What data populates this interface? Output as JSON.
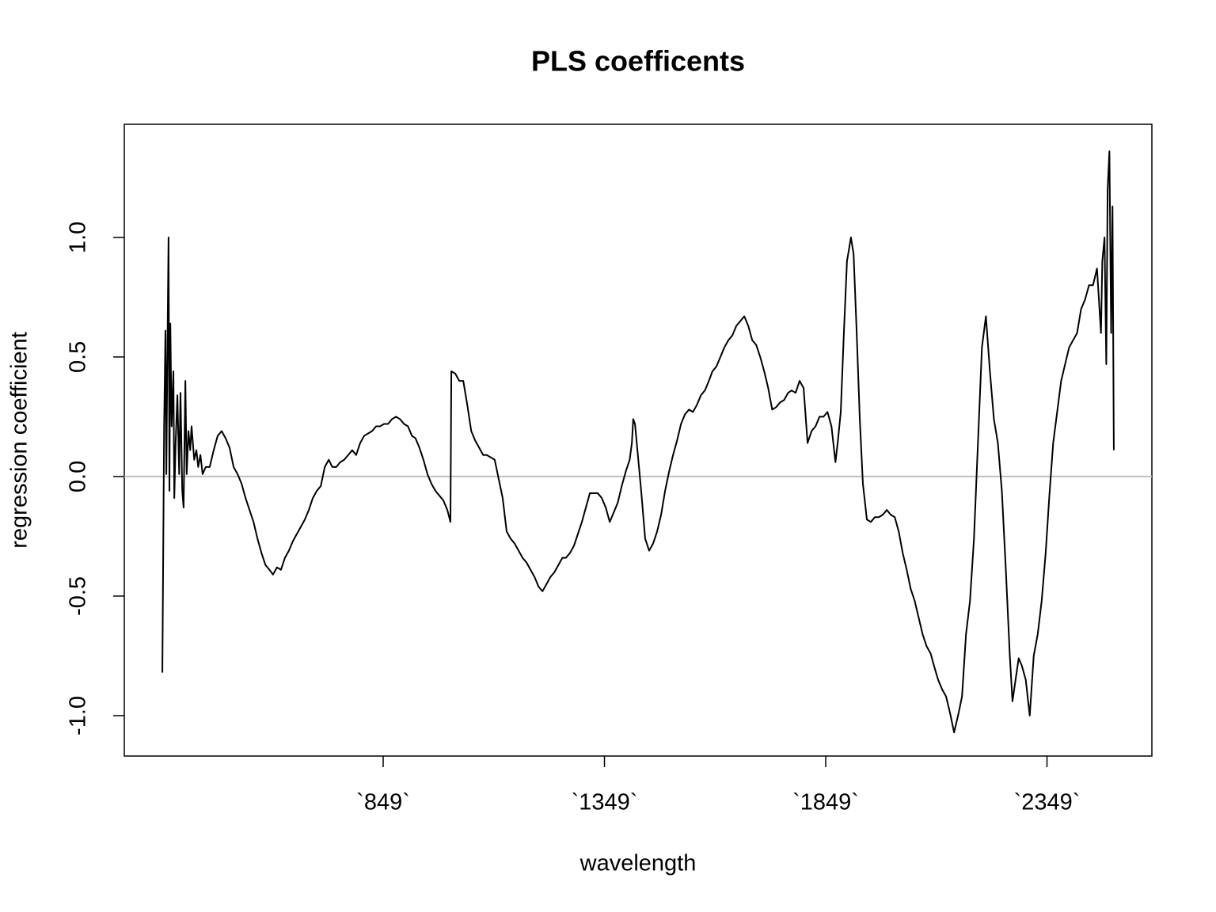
{
  "chart_data": {
    "type": "line",
    "title": "PLS coefficents",
    "x_label": "wavelength",
    "y_label": "regression coefficient",
    "x": [
      350,
      354,
      357,
      359,
      361,
      364,
      366,
      368,
      371,
      375,
      377,
      380,
      384,
      388,
      391,
      395,
      398,
      402,
      405,
      409,
      413,
      416,
      422,
      427,
      431,
      436,
      441,
      448,
      457,
      466,
      475,
      484,
      493,
      502,
      511,
      520,
      529,
      538,
      547,
      556,
      565,
      574,
      583,
      592,
      600,
      609,
      618,
      627,
      636,
      645,
      654,
      663,
      672,
      681,
      690,
      699,
      708,
      717,
      726,
      734,
      743,
      752,
      761,
      770,
      779,
      788,
      797,
      806,
      815,
      824,
      833,
      842,
      851,
      860,
      869,
      878,
      887,
      896,
      905,
      914,
      922,
      931,
      940,
      949,
      958,
      967,
      976,
      985,
      994,
      1001,
      1003,
      1012,
      1021,
      1030,
      1039,
      1048,
      1057,
      1066,
      1075,
      1083,
      1092,
      1101,
      1110,
      1119,
      1128,
      1137,
      1146,
      1155,
      1164,
      1173,
      1182,
      1191,
      1200,
      1209,
      1218,
      1227,
      1236,
      1245,
      1254,
      1262,
      1271,
      1280,
      1289,
      1298,
      1307,
      1316,
      1325,
      1334,
      1343,
      1352,
      1361,
      1370,
      1379,
      1388,
      1397,
      1406,
      1411,
      1414,
      1418,
      1423,
      1432,
      1441,
      1450,
      1459,
      1468,
      1477,
      1486,
      1495,
      1504,
      1513,
      1522,
      1531,
      1540,
      1549,
      1558,
      1567,
      1576,
      1585,
      1593,
      1602,
      1611,
      1620,
      1629,
      1638,
      1647,
      1656,
      1665,
      1674,
      1683,
      1692,
      1701,
      1710,
      1719,
      1728,
      1737,
      1746,
      1755,
      1764,
      1772,
      1781,
      1790,
      1799,
      1808,
      1817,
      1826,
      1835,
      1844,
      1853,
      1862,
      1871,
      1876,
      1883,
      1890,
      1897,
      1906,
      1912,
      1919,
      1926,
      1933,
      1942,
      1951,
      1960,
      1969,
      1978,
      1987,
      1996,
      2005,
      2014,
      2023,
      2032,
      2041,
      2050,
      2059,
      2068,
      2077,
      2086,
      2095,
      2103,
      2112,
      2121,
      2130,
      2139,
      2148,
      2157,
      2166,
      2175,
      2184,
      2193,
      2202,
      2211,
      2220,
      2229,
      2238,
      2247,
      2256,
      2265,
      2271,
      2278,
      2285,
      2292,
      2301,
      2310,
      2319,
      2328,
      2337,
      2346,
      2354,
      2363,
      2372,
      2381,
      2390,
      2399,
      2408,
      2417,
      2426,
      2435,
      2444,
      2453,
      2462,
      2471,
      2474,
      2479,
      2483,
      2486,
      2490,
      2494,
      2497,
      2500
    ],
    "values": [
      -0.82,
      0.21,
      0.61,
      0.01,
      0.44,
      1.0,
      -0.06,
      0.64,
      0.21,
      0.44,
      -0.09,
      0.14,
      0.34,
      0.01,
      0.35,
      -0.06,
      -0.13,
      0.4,
      0.01,
      0.19,
      0.11,
      0.21,
      0.07,
      0.11,
      0.04,
      0.09,
      0.01,
      0.04,
      0.04,
      0.11,
      0.17,
      0.19,
      0.16,
      0.12,
      0.04,
      0.01,
      -0.03,
      -0.09,
      -0.14,
      -0.19,
      -0.26,
      -0.32,
      -0.37,
      -0.39,
      -0.41,
      -0.38,
      -0.39,
      -0.34,
      -0.31,
      -0.27,
      -0.24,
      -0.21,
      -0.18,
      -0.14,
      -0.09,
      -0.06,
      -0.04,
      0.04,
      0.07,
      0.04,
      0.04,
      0.06,
      0.07,
      0.09,
      0.11,
      0.09,
      0.14,
      0.17,
      0.18,
      0.19,
      0.21,
      0.21,
      0.22,
      0.22,
      0.24,
      0.25,
      0.24,
      0.22,
      0.21,
      0.17,
      0.16,
      0.12,
      0.07,
      0.01,
      -0.03,
      -0.06,
      -0.08,
      -0.1,
      -0.14,
      -0.19,
      0.44,
      0.43,
      0.4,
      0.4,
      0.3,
      0.19,
      0.15,
      0.12,
      0.09,
      0.09,
      0.08,
      0.07,
      -0.01,
      -0.09,
      -0.23,
      -0.26,
      -0.28,
      -0.31,
      -0.34,
      -0.36,
      -0.39,
      -0.42,
      -0.46,
      -0.48,
      -0.45,
      -0.42,
      -0.4,
      -0.37,
      -0.34,
      -0.34,
      -0.32,
      -0.29,
      -0.24,
      -0.19,
      -0.13,
      -0.07,
      -0.07,
      -0.07,
      -0.09,
      -0.13,
      -0.19,
      -0.15,
      -0.11,
      -0.04,
      0.02,
      0.07,
      0.14,
      0.24,
      0.22,
      0.12,
      -0.06,
      -0.26,
      -0.31,
      -0.28,
      -0.23,
      -0.16,
      -0.06,
      0.02,
      0.09,
      0.15,
      0.22,
      0.26,
      0.28,
      0.27,
      0.3,
      0.34,
      0.36,
      0.4,
      0.44,
      0.46,
      0.5,
      0.54,
      0.57,
      0.59,
      0.63,
      0.65,
      0.67,
      0.63,
      0.57,
      0.55,
      0.5,
      0.44,
      0.37,
      0.28,
      0.29,
      0.31,
      0.32,
      0.35,
      0.36,
      0.35,
      0.4,
      0.37,
      0.14,
      0.19,
      0.21,
      0.25,
      0.25,
      0.27,
      0.21,
      0.06,
      0.14,
      0.27,
      0.6,
      0.9,
      1.0,
      0.93,
      0.6,
      0.24,
      -0.03,
      -0.18,
      -0.19,
      -0.17,
      -0.17,
      -0.16,
      -0.14,
      -0.16,
      -0.17,
      -0.23,
      -0.32,
      -0.39,
      -0.47,
      -0.52,
      -0.59,
      -0.66,
      -0.71,
      -0.74,
      -0.8,
      -0.85,
      -0.89,
      -0.92,
      -0.99,
      -1.07,
      -1.0,
      -0.92,
      -0.66,
      -0.52,
      -0.26,
      0.14,
      0.54,
      0.67,
      0.44,
      0.24,
      0.14,
      -0.06,
      -0.39,
      -0.75,
      -0.94,
      -0.85,
      -0.76,
      -0.79,
      -0.85,
      -1.0,
      -0.75,
      -0.66,
      -0.52,
      -0.32,
      -0.09,
      0.14,
      0.27,
      0.4,
      0.47,
      0.54,
      0.57,
      0.6,
      0.7,
      0.74,
      0.8,
      0.8,
      0.87,
      0.6,
      0.9,
      1.0,
      0.47,
      1.2,
      1.36,
      0.6,
      1.13,
      0.11
    ],
    "color": "#000000",
    "xlim": [
      264,
      2586
    ],
    "ylim": [
      -1.169,
      1.473
    ],
    "xticks": [
      {
        "value": 849,
        "label": "`849`"
      },
      {
        "value": 1349,
        "label": "`1349`"
      },
      {
        "value": 1849,
        "label": "`1849`"
      },
      {
        "value": 2349,
        "label": "`2349`"
      }
    ],
    "yticks": [
      {
        "value": -1,
        "label": "-1.0"
      },
      -0.5,
      {
        "value": 0,
        "label": "0.0"
      },
      0.5,
      {
        "value": 1,
        "label": "1.0"
      }
    ],
    "hline": {
      "value": 0,
      "color": "#bebebe"
    }
  }
}
